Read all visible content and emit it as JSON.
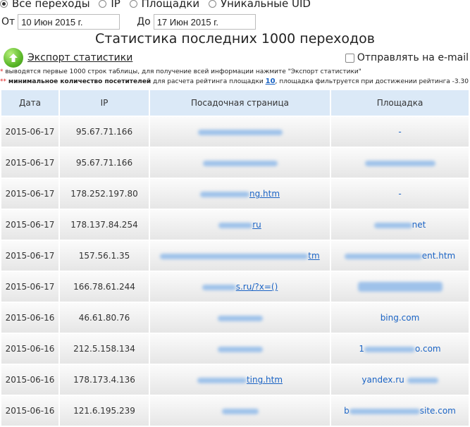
{
  "filters": {
    "options": [
      {
        "label": "Все переходы",
        "selected": true
      },
      {
        "label": "IP",
        "selected": false
      },
      {
        "label": "Площадки",
        "selected": false
      },
      {
        "label": "Уникальные UID",
        "selected": false
      }
    ]
  },
  "date_range": {
    "from_label": "От",
    "from_value": "10 Июн 2015 г.",
    "to_label": "До",
    "to_value": "17 Июн 2015 г."
  },
  "title": "Статистика последних 1000 переходов",
  "export": {
    "label": "Экспорт статистики",
    "icon": "upload-arrow-icon"
  },
  "email_option": {
    "label": "Отправлять на e-mail",
    "checked": false
  },
  "notes": {
    "note1": "выводятся первые 1000 строк таблицы, для получение всей информации нажмите \"Экспорт статистики\"",
    "note2_bold": "минимальное количество посетителей",
    "note2_a": "для расчета рейтинга площадки",
    "note2_num": "10",
    "note2_b": ", площадка фильтруется при достижении рейтинга -3.30"
  },
  "table": {
    "headers": [
      "Дата",
      "IP",
      "Посадочная страница",
      "Площадка"
    ],
    "rows": [
      {
        "date": "2015-06-17",
        "ip": "95.67.71.166",
        "page": "",
        "site": "-"
      },
      {
        "date": "2015-06-17",
        "ip": "95.67.71.166",
        "page": "",
        "site": ""
      },
      {
        "date": "2015-06-17",
        "ip": "178.252.197.80",
        "page": "ng.htm",
        "site": "-"
      },
      {
        "date": "2015-06-17",
        "ip": "178.137.84.254",
        "page": "ru",
        "site": "net"
      },
      {
        "date": "2015-06-17",
        "ip": "157.56.1.35",
        "page": "tm",
        "site": "ent.htm"
      },
      {
        "date": "2015-06-17",
        "ip": "166.78.61.244",
        "page": "s.ru/?x=()",
        "site": ""
      },
      {
        "date": "2015-06-16",
        "ip": "46.61.80.76",
        "page": "",
        "site": "bing.com"
      },
      {
        "date": "2015-06-16",
        "ip": "212.5.158.134",
        "page": "",
        "site": "o.com"
      },
      {
        "date": "2015-06-16",
        "ip": "178.173.4.136",
        "page": "ting.htm",
        "site": "yandex.ru"
      },
      {
        "date": "2015-06-16",
        "ip": "121.6.195.239",
        "page": "",
        "site": "site.com"
      }
    ]
  }
}
